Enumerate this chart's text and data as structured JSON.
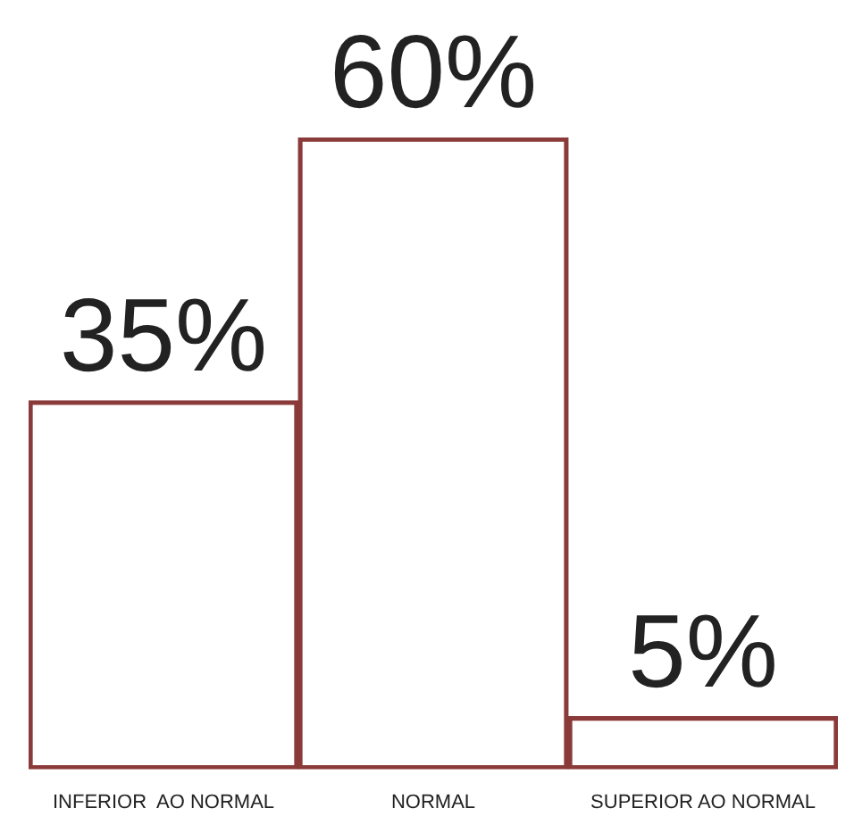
{
  "chart_data": {
    "type": "bar",
    "categories": [
      "INFERIOR  AO NORMAL",
      "NORMAL",
      "SUPERIOR AO NORMAL"
    ],
    "values": [
      35,
      60,
      5
    ],
    "color": "#8b3a3a",
    "value_labels": [
      "35%",
      "60%",
      "5%"
    ],
    "grid": false,
    "legend": false
  }
}
